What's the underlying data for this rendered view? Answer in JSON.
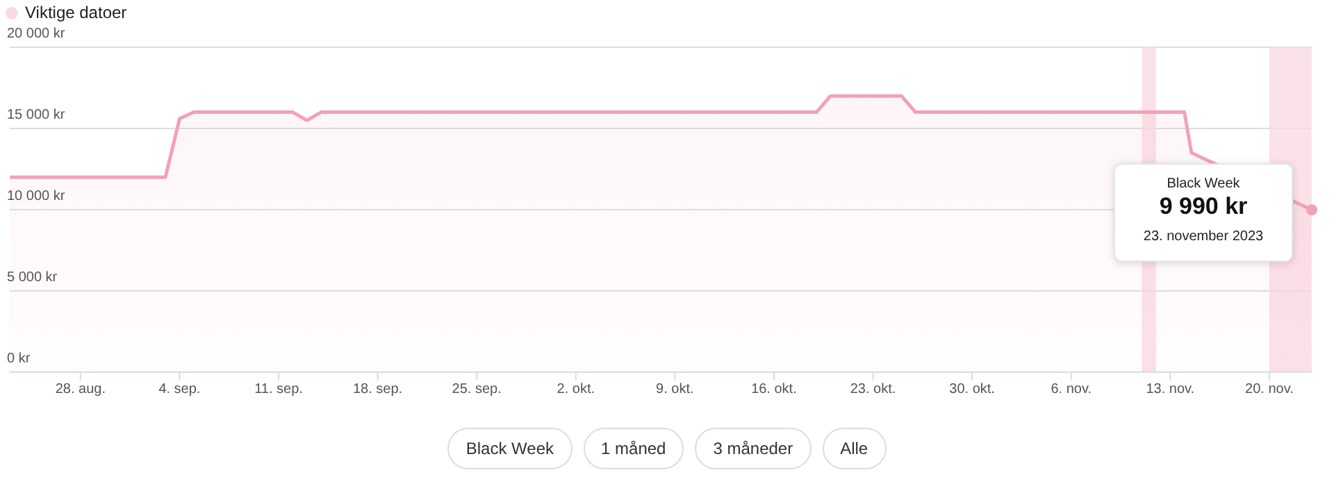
{
  "chart_data": {
    "type": "area",
    "x": [
      "2023-08-23",
      "2023-09-03",
      "2023-09-04",
      "2023-09-05",
      "2023-09-12",
      "2023-09-13",
      "2023-09-14",
      "2023-10-19",
      "2023-10-20",
      "2023-10-25",
      "2023-10-26",
      "2023-11-14",
      "2023-11-14T12:00",
      "2023-11-23"
    ],
    "series": [
      {
        "color": "#f2a2b5",
        "values": [
          12000,
          12000,
          15600,
          16000,
          16000,
          15500,
          16000,
          16000,
          17000,
          17000,
          16000,
          16000,
          13500,
          9990
        ]
      }
    ],
    "xlim": [
      "2023-08-23",
      "2023-11-23"
    ],
    "xticks": [
      {
        "value": "2023-08-28",
        "label": "28. aug."
      },
      {
        "value": "2023-09-04",
        "label": "4. sep."
      },
      {
        "value": "2023-09-11",
        "label": "11. sep."
      },
      {
        "value": "2023-09-18",
        "label": "18. sep."
      },
      {
        "value": "2023-09-25",
        "label": "25. sep."
      },
      {
        "value": "2023-10-02",
        "label": "2. okt."
      },
      {
        "value": "2023-10-09",
        "label": "9. okt."
      },
      {
        "value": "2023-10-16",
        "label": "16. okt."
      },
      {
        "value": "2023-10-23",
        "label": "23. okt."
      },
      {
        "value": "2023-10-30",
        "label": "30. okt."
      },
      {
        "value": "2023-11-06",
        "label": "6. nov."
      },
      {
        "value": "2023-11-13",
        "label": "13. nov."
      },
      {
        "value": "2023-11-20",
        "label": "20. nov."
      }
    ],
    "ylim": [
      0,
      20000
    ],
    "yticks": [
      {
        "value": 0,
        "label": "0 kr"
      },
      {
        "value": 5000,
        "label": "5 000 kr"
      },
      {
        "value": 10000,
        "label": "10 000 kr"
      },
      {
        "value": 15000,
        "label": "15 000 kr"
      },
      {
        "value": 20000,
        "label": "20 000 kr"
      }
    ],
    "grid": "y",
    "bands": [
      {
        "axis": "x",
        "from": "2023-11-11",
        "to": "2023-11-12",
        "label": "Viktige datoer",
        "color": "#fadbe2"
      },
      {
        "axis": "x",
        "from": "2023-11-20",
        "to": "2023-11-23",
        "color": "#fadbe2"
      }
    ],
    "legend": "top left",
    "annotations": [
      {
        "text": "Black Week\n9 990 kr\n23. november 2023",
        "x": "2023-11-23",
        "y": 9990
      },
      "Black Week",
      "1 måned",
      "3 måneder",
      "Alle"
    ]
  }
}
